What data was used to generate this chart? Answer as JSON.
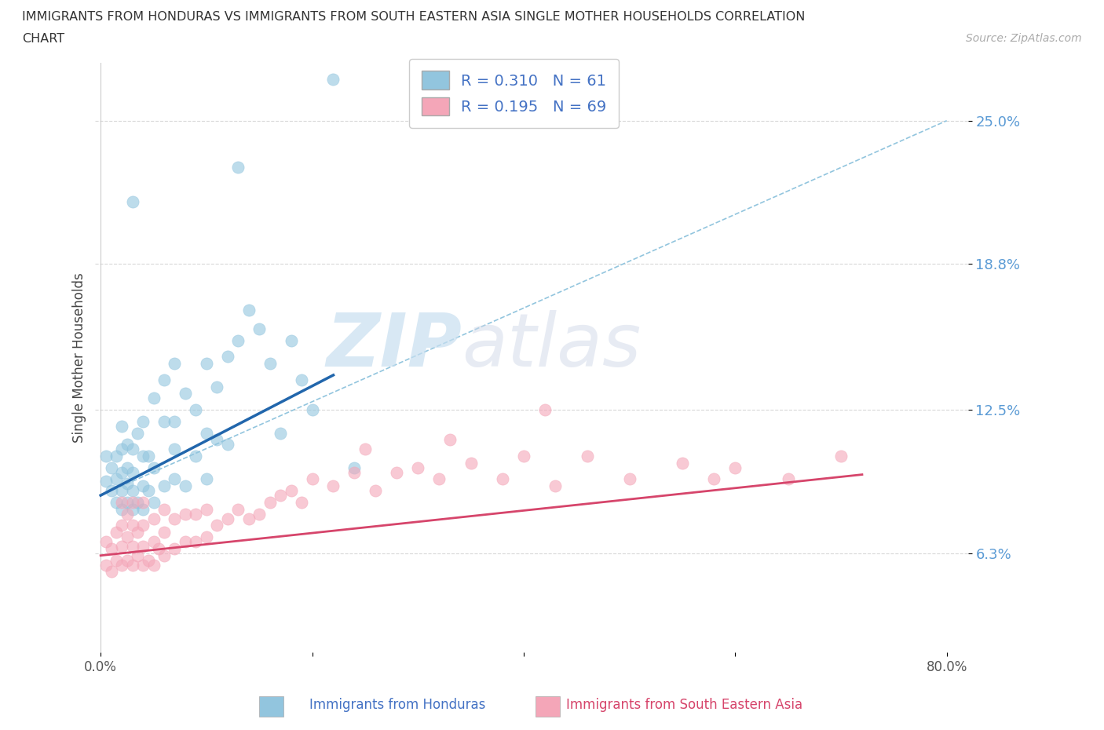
{
  "title_line1": "IMMIGRANTS FROM HONDURAS VS IMMIGRANTS FROM SOUTH EASTERN ASIA SINGLE MOTHER HOUSEHOLDS CORRELATION",
  "title_line2": "CHART",
  "source": "Source: ZipAtlas.com",
  "ylabel": "Single Mother Households",
  "xlim": [
    -0.005,
    0.82
  ],
  "ylim": [
    0.02,
    0.275
  ],
  "yticks": [
    0.063,
    0.125,
    0.188,
    0.25
  ],
  "ytick_labels": [
    "6.3%",
    "12.5%",
    "18.8%",
    "25.0%"
  ],
  "xticks": [
    0.0,
    0.2,
    0.4,
    0.6,
    0.8
  ],
  "xtick_labels": [
    "0.0%",
    "",
    "",
    "",
    "80.0%"
  ],
  "color_blue": "#92c5de",
  "color_pink": "#f4a6b8",
  "trendline_blue": "#2166ac",
  "trendline_pink": "#d6456b",
  "trendline_dash_color": "#92c5de",
  "watermark_zip": "ZIP",
  "watermark_atlas": "atlas",
  "blue_scatter_x": [
    0.005,
    0.005,
    0.01,
    0.01,
    0.015,
    0.015,
    0.015,
    0.02,
    0.02,
    0.02,
    0.02,
    0.02,
    0.025,
    0.025,
    0.025,
    0.025,
    0.03,
    0.03,
    0.03,
    0.03,
    0.03,
    0.035,
    0.035,
    0.04,
    0.04,
    0.04,
    0.04,
    0.045,
    0.045,
    0.05,
    0.05,
    0.05,
    0.06,
    0.06,
    0.06,
    0.07,
    0.07,
    0.07,
    0.07,
    0.08,
    0.08,
    0.09,
    0.09,
    0.1,
    0.1,
    0.1,
    0.11,
    0.11,
    0.12,
    0.12,
    0.13,
    0.13,
    0.14,
    0.15,
    0.16,
    0.17,
    0.18,
    0.19,
    0.2,
    0.22,
    0.24
  ],
  "blue_scatter_y": [
    0.094,
    0.105,
    0.09,
    0.1,
    0.085,
    0.095,
    0.105,
    0.082,
    0.09,
    0.098,
    0.108,
    0.118,
    0.085,
    0.093,
    0.1,
    0.11,
    0.082,
    0.09,
    0.098,
    0.108,
    0.215,
    0.085,
    0.115,
    0.082,
    0.092,
    0.105,
    0.12,
    0.09,
    0.105,
    0.085,
    0.1,
    0.13,
    0.092,
    0.12,
    0.138,
    0.095,
    0.108,
    0.12,
    0.145,
    0.092,
    0.132,
    0.105,
    0.125,
    0.095,
    0.115,
    0.145,
    0.112,
    0.135,
    0.11,
    0.148,
    0.155,
    0.23,
    0.168,
    0.16,
    0.145,
    0.115,
    0.155,
    0.138,
    0.125,
    0.268,
    0.1
  ],
  "pink_scatter_x": [
    0.005,
    0.005,
    0.01,
    0.01,
    0.015,
    0.015,
    0.02,
    0.02,
    0.02,
    0.02,
    0.025,
    0.025,
    0.025,
    0.03,
    0.03,
    0.03,
    0.03,
    0.035,
    0.035,
    0.04,
    0.04,
    0.04,
    0.04,
    0.045,
    0.05,
    0.05,
    0.05,
    0.055,
    0.06,
    0.06,
    0.06,
    0.07,
    0.07,
    0.08,
    0.08,
    0.09,
    0.09,
    0.1,
    0.1,
    0.11,
    0.12,
    0.13,
    0.14,
    0.15,
    0.16,
    0.17,
    0.18,
    0.19,
    0.2,
    0.22,
    0.24,
    0.26,
    0.28,
    0.3,
    0.32,
    0.35,
    0.38,
    0.4,
    0.43,
    0.46,
    0.5,
    0.55,
    0.6,
    0.65,
    0.7,
    0.25,
    0.33,
    0.42,
    0.58
  ],
  "pink_scatter_y": [
    0.058,
    0.068,
    0.055,
    0.065,
    0.06,
    0.072,
    0.058,
    0.066,
    0.075,
    0.085,
    0.06,
    0.07,
    0.08,
    0.058,
    0.066,
    0.075,
    0.085,
    0.062,
    0.072,
    0.058,
    0.066,
    0.075,
    0.085,
    0.06,
    0.058,
    0.068,
    0.078,
    0.065,
    0.062,
    0.072,
    0.082,
    0.065,
    0.078,
    0.068,
    0.08,
    0.068,
    0.08,
    0.07,
    0.082,
    0.075,
    0.078,
    0.082,
    0.078,
    0.08,
    0.085,
    0.088,
    0.09,
    0.085,
    0.095,
    0.092,
    0.098,
    0.09,
    0.098,
    0.1,
    0.095,
    0.102,
    0.095,
    0.105,
    0.092,
    0.105,
    0.095,
    0.102,
    0.1,
    0.095,
    0.105,
    0.108,
    0.112,
    0.125,
    0.095
  ],
  "blue_trend_x": [
    0.0,
    0.22
  ],
  "blue_trend_y": [
    0.088,
    0.14
  ],
  "pink_trend_x": [
    0.0,
    0.72
  ],
  "pink_trend_y": [
    0.062,
    0.097
  ],
  "dash_line_x": [
    0.0,
    0.8
  ],
  "dash_line_y": [
    0.088,
    0.25
  ],
  "background_color": "#ffffff",
  "grid_color": "#d8d8d8",
  "legend_r_blue": "R = 0.310",
  "legend_n_blue": "N = 61",
  "legend_r_pink": "R = 0.195",
  "legend_n_pink": "N = 69"
}
